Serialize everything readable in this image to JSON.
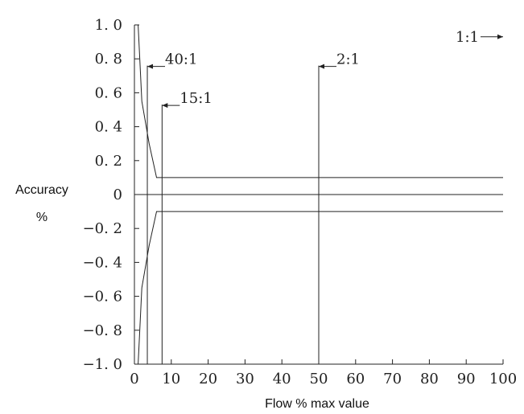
{
  "chart_data": {
    "type": "line",
    "xlabel": "Flow % max value",
    "ylabel_line1": "Accuracy",
    "ylabel_line2": "%",
    "xlim": [
      0,
      100
    ],
    "ylim": [
      -1.0,
      1.0
    ],
    "x_ticks": [
      0,
      10,
      20,
      30,
      40,
      50,
      60,
      70,
      80,
      90,
      100
    ],
    "x_tick_labels": [
      "0",
      "10",
      "20",
      "30",
      "40",
      "50",
      "60",
      "70",
      "80",
      "90",
      "100"
    ],
    "y_ticks": [
      1.0,
      0.8,
      0.6,
      0.4,
      0.2,
      0,
      -0.2,
      -0.4,
      -0.6,
      -0.8,
      -1.0
    ],
    "y_tick_labels": [
      "1. 0",
      "0. 8",
      "0. 6",
      "0. 4",
      "0. 2",
      "0",
      "-0. 2",
      "-0. 4",
      "-0. 6",
      "-0. 8",
      "-1. 0"
    ],
    "grid": false,
    "series": [
      {
        "values_x": [
          1.0,
          2.0,
          4.0,
          6.0,
          7.0,
          100
        ],
        "values_y": [
          1.0,
          0.55,
          0.3,
          0.1,
          0.1,
          0.1
        ]
      },
      {
        "values_x": [
          1.0,
          2.0,
          4.0,
          6.0,
          7.0,
          100
        ],
        "values_y": [
          -1.0,
          -0.55,
          -0.3,
          -0.1,
          -0.1,
          -0.1
        ]
      }
    ],
    "zero_line": 0,
    "ratio_markers": [
      {
        "label": "40:1",
        "x": 3.5,
        "label_y": 0.76
      },
      {
        "label": "15:1",
        "x": 7.5,
        "label_y": 0.53
      },
      {
        "label": "2:1",
        "x": 50,
        "label_y": 0.76
      }
    ],
    "full_scale_marker": {
      "label": "1:1",
      "x": 100,
      "label_y": 0.93
    },
    "line_color": "#222222"
  }
}
